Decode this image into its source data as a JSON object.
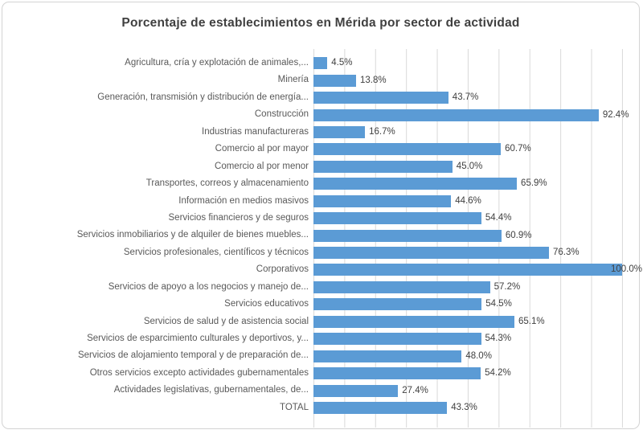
{
  "chart_data": {
    "type": "bar",
    "orientation": "horizontal",
    "title": "Porcentaje de establecimientos en Mérida por sector de actividad",
    "xlabel": "",
    "ylabel": "",
    "xlim": [
      0,
      100
    ],
    "gridline_step_pct": 10,
    "grid": true,
    "legend": false,
    "bar_color": "#5B9BD5",
    "gridline_color": "#D9D9D9",
    "title_color": "#404040",
    "category_label_color": "#595959",
    "value_label_color": "#404040",
    "categories": [
      "Agricultura, cría y explotación de animales,...",
      "Minería",
      "Generación, transmisión y distribución de energía...",
      "Construcción",
      "Industrias manufactureras",
      "Comercio al por mayor",
      "Comercio al por menor",
      "Transportes, correos y almacenamiento",
      "Información en medios masivos",
      "Servicios financieros y de seguros",
      "Servicios inmobiliarios y de alquiler de bienes muebles...",
      "Servicios profesionales, científicos y técnicos",
      "Corporativos",
      "Servicios de apoyo a los negocios y manejo de...",
      "Servicios educativos",
      "Servicios de salud y de asistencia social",
      "Servicios de esparcimiento culturales y deportivos, y...",
      "Servicios de alojamiento temporal y de preparación de...",
      "Otros servicios excepto actividades gubernamentales",
      "Actividades legislativas, gubernamentales, de...",
      "TOTAL"
    ],
    "values": [
      4.5,
      13.8,
      43.7,
      92.4,
      16.7,
      60.7,
      45.0,
      65.9,
      44.6,
      54.4,
      60.9,
      76.3,
      100.0,
      57.2,
      54.5,
      65.1,
      54.3,
      48.0,
      54.2,
      27.4,
      43.3
    ],
    "value_labels": [
      "4.5%",
      "13.8%",
      "43.7%",
      "92.4%",
      "16.7%",
      "60.7%",
      "45.0%",
      "65.9%",
      "44.6%",
      "54.4%",
      "60.9%",
      "76.3%",
      "100.0%",
      "57.2%",
      "54.5%",
      "65.1%",
      "54.3%",
      "48.0%",
      "54.2%",
      "27.4%",
      "43.3%"
    ]
  }
}
